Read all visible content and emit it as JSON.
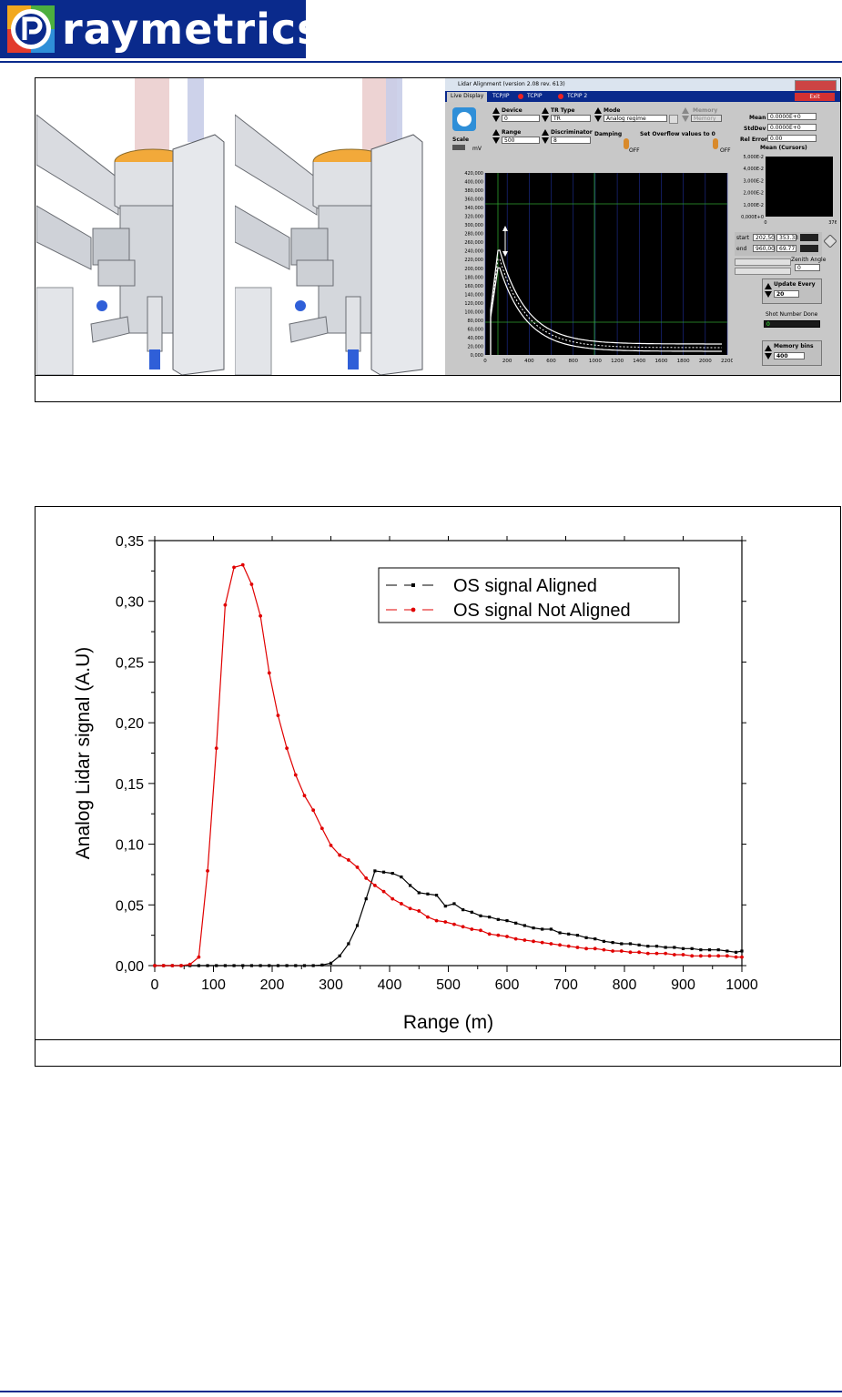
{
  "header": {
    "brand": "raymetrics",
    "brand_color": "#0a2a8c"
  },
  "app": {
    "window_title": "Lidar Alignment (version 2.08 rev. 613)",
    "tabs": [
      "Live Display",
      "TCP/IP",
      "TCPIP",
      "TCPIP 2"
    ],
    "exit_label": "Exit",
    "scale_label": "Scale",
    "scale_unit": "mV",
    "device": {
      "label": "Device",
      "value": "0"
    },
    "range": {
      "label": "Range",
      "value": "500"
    },
    "tr_type": {
      "label": "TR Type",
      "value": "TR"
    },
    "discriminator": {
      "label": "Discriminator",
      "value": "8"
    },
    "mode": {
      "label": "Mode",
      "value": "Analog regime"
    },
    "memory": {
      "label": "Memory",
      "value": "Memory"
    },
    "damping_label": "Damping",
    "overflow_label": "Set Overflow values to 0",
    "off_label": "OFF",
    "stats": {
      "mean_label": "Mean",
      "mean_value": "0.0000E+0",
      "stddev_label": "StdDev",
      "stddev_value": "0.0000E+0",
      "relerror_label": "Rel Error",
      "relerror_value": "0.00"
    },
    "mini_chart": {
      "title": "Mean (Cursors)",
      "y_ticks": [
        "5,000E-2",
        "4,000E-2",
        "3,000E-2",
        "2,000E-2",
        "1,000E-2",
        "0,000E+0"
      ],
      "x_ticks": [
        "0",
        "376"
      ]
    },
    "cursors": {
      "start_label": "start",
      "start_x": "202,50",
      "start_y": "353.33",
      "end_label": "end",
      "end_x": "960,00",
      "end_y": "69.77"
    },
    "zenith_label": "Zenith Angle",
    "zenith_value": "0",
    "update_label": "Update Every",
    "update_value": "20",
    "shot_label": "Shot Number Done",
    "shot_value": "0",
    "membins_label": "Memory bins",
    "membins_value": "400",
    "plot": {
      "y_ticks": [
        "420,000",
        "400,000",
        "380,000",
        "360,000",
        "340,000",
        "320,000",
        "300,000",
        "280,000",
        "260,000",
        "240,000",
        "220,000",
        "200,000",
        "180,000",
        "160,000",
        "140,000",
        "120,000",
        "100,000",
        "80,000",
        "60,000",
        "40,000",
        "20,000",
        "0,000"
      ],
      "x_ticks": [
        "0",
        "200",
        "400",
        "600",
        "800",
        "1000",
        "1200",
        "1400",
        "1600",
        "1800",
        "2000",
        "2200"
      ]
    }
  },
  "chart_data": {
    "type": "line",
    "xlabel": "Range (m)",
    "ylabel": "Analog Lidar signal (A.U)",
    "xlim": [
      0,
      1000
    ],
    "ylim": [
      0,
      0.35
    ],
    "x_ticks": [
      "0",
      "100",
      "200",
      "300",
      "400",
      "500",
      "600",
      "700",
      "800",
      "900",
      "1000"
    ],
    "y_ticks": [
      "0,00",
      "0,05",
      "0,10",
      "0,15",
      "0,20",
      "0,25",
      "0,30",
      "0,35"
    ],
    "legend_position": "top-right",
    "series": [
      {
        "name": "OS signal Aligned",
        "color": "#000000",
        "x": [
          0,
          15,
          30,
          45,
          60,
          75,
          90,
          105,
          120,
          135,
          150,
          165,
          180,
          195,
          210,
          225,
          240,
          255,
          270,
          285,
          300,
          315,
          330,
          345,
          360,
          375,
          390,
          405,
          420,
          435,
          450,
          465,
          480,
          495,
          510,
          525,
          540,
          555,
          570,
          585,
          600,
          615,
          630,
          645,
          660,
          675,
          690,
          705,
          720,
          735,
          750,
          765,
          780,
          795,
          810,
          825,
          840,
          855,
          870,
          885,
          900,
          915,
          930,
          945,
          960,
          975,
          990,
          1000
        ],
        "y": [
          0,
          0,
          0,
          0,
          0,
          0,
          0,
          0,
          0,
          0,
          0,
          0,
          0,
          0,
          0,
          0,
          0,
          0,
          0,
          0.0005,
          0.002,
          0.008,
          0.018,
          0.033,
          0.055,
          0.078,
          0.077,
          0.076,
          0.073,
          0.066,
          0.06,
          0.059,
          0.058,
          0.049,
          0.051,
          0.046,
          0.044,
          0.041,
          0.04,
          0.038,
          0.037,
          0.035,
          0.033,
          0.031,
          0.03,
          0.03,
          0.027,
          0.026,
          0.025,
          0.023,
          0.022,
          0.02,
          0.019,
          0.018,
          0.018,
          0.017,
          0.016,
          0.016,
          0.015,
          0.015,
          0.014,
          0.014,
          0.013,
          0.013,
          0.013,
          0.012,
          0.011,
          0.012
        ]
      },
      {
        "name": "OS signal Not Aligned",
        "color": "#e00000",
        "x": [
          0,
          15,
          30,
          45,
          60,
          75,
          90,
          105,
          120,
          135,
          150,
          165,
          180,
          195,
          210,
          225,
          240,
          255,
          270,
          285,
          300,
          315,
          330,
          345,
          360,
          375,
          390,
          405,
          420,
          435,
          450,
          465,
          480,
          495,
          510,
          525,
          540,
          555,
          570,
          585,
          600,
          615,
          630,
          645,
          660,
          675,
          690,
          705,
          720,
          735,
          750,
          765,
          780,
          795,
          810,
          825,
          840,
          855,
          870,
          885,
          900,
          915,
          930,
          945,
          960,
          975,
          990,
          1000
        ],
        "y": [
          0,
          0,
          0,
          0,
          0.001,
          0.007,
          0.078,
          0.179,
          0.297,
          0.328,
          0.33,
          0.314,
          0.288,
          0.241,
          0.206,
          0.179,
          0.157,
          0.14,
          0.128,
          0.113,
          0.099,
          0.091,
          0.087,
          0.081,
          0.072,
          0.066,
          0.061,
          0.055,
          0.051,
          0.047,
          0.045,
          0.04,
          0.037,
          0.036,
          0.034,
          0.032,
          0.03,
          0.029,
          0.026,
          0.025,
          0.024,
          0.022,
          0.021,
          0.02,
          0.019,
          0.018,
          0.017,
          0.016,
          0.015,
          0.014,
          0.014,
          0.013,
          0.012,
          0.012,
          0.011,
          0.011,
          0.01,
          0.01,
          0.01,
          0.009,
          0.009,
          0.008,
          0.008,
          0.008,
          0.008,
          0.008,
          0.007,
          0.007
        ]
      }
    ]
  }
}
